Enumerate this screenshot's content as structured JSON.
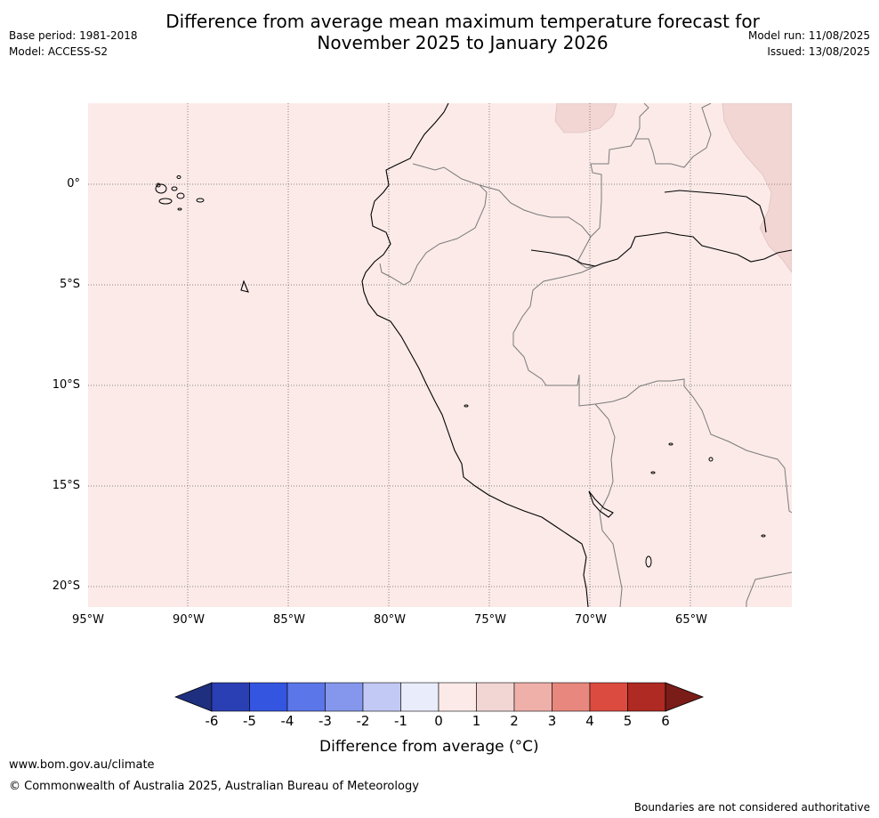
{
  "title_line1": "Difference from average mean maximum temperature forecast for",
  "title_line2": "November 2025 to January 2026",
  "base_period": "Base period: 1981-2018",
  "model": "Model: ACCESS-S2",
  "model_run": "Model run: 11/08/2025",
  "issued": "Issued: 13/08/2025",
  "map": {
    "lat_labels": [
      "0°",
      "5°S",
      "10°S",
      "15°S",
      "20°S"
    ],
    "lon_labels": [
      "95°W",
      "90°W",
      "85°W",
      "80°W",
      "75°W",
      "70°W",
      "65°W"
    ],
    "anomaly_fill": "#fbeae8",
    "warmer_fill": "#f2d6d3"
  },
  "colorbar": {
    "ticks": [
      "-6",
      "-5",
      "-4",
      "-3",
      "-2",
      "-1",
      "0",
      "1",
      "2",
      "3",
      "4",
      "5",
      "6"
    ],
    "colors": [
      "#1f2f80",
      "#2a3fb4",
      "#3455e0",
      "#5b76e8",
      "#8497ec",
      "#c2c9f4",
      "#e9ecfb",
      "#fbeae8",
      "#f2d6d3",
      "#efb0aa",
      "#e8877e",
      "#dc4b3f",
      "#ae2a22",
      "#7a1c17"
    ],
    "label": "Difference from average (°C)"
  },
  "footer": {
    "url": "www.bom.gov.au/climate",
    "copyright": "© Commonwealth of Australia 2025, Australian Bureau of Meteorology",
    "disclaimer": "Boundaries are not considered authoritative"
  }
}
